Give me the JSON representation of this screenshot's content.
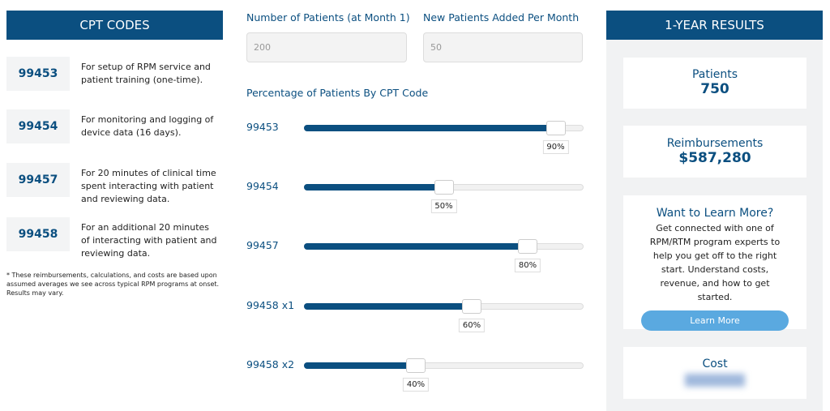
{
  "cpt_panel": {
    "title": "CPT CODES",
    "codes": [
      {
        "code": "99453",
        "description": "For setup of RPM service and patient training (one-time)."
      },
      {
        "code": "99454",
        "description": "For monitoring and logging of device data (16 days)."
      },
      {
        "code": "99457",
        "description": "For 20 minutes of clinical time spent interacting with patient and reviewing data."
      },
      {
        "code": "99458",
        "description": "For an additional 20 minutes of interacting with patient and reviewing data."
      }
    ],
    "footnote": "* These reimbursements, calculations, and costs are based upon assumed averages we see across typical RPM programs at onset. Results may vary."
  },
  "inputs": [
    {
      "label": "Number of Patients (at Month 1)",
      "value": "200"
    },
    {
      "label": "New Patients Added Per Month",
      "value": "50"
    }
  ],
  "sliders": {
    "title": "Percentage of Patients By CPT Code",
    "items": [
      {
        "label": "99453",
        "value": 90,
        "value_label": "90%"
      },
      {
        "label": "99454",
        "value": 50,
        "value_label": "50%"
      },
      {
        "label": "99457",
        "value": 80,
        "value_label": "80%"
      },
      {
        "label": "99458 x1",
        "value": 60,
        "value_label": "60%"
      },
      {
        "label": "99458 x2",
        "value": 40,
        "value_label": "40%"
      }
    ]
  },
  "results": {
    "title": "1-YEAR RESULTS",
    "patients": {
      "label": "Patients",
      "value": "750"
    },
    "reimbursements": {
      "label": "Reimbursements",
      "value": "$587,280"
    },
    "learn_more": {
      "title": "Want to Learn More?",
      "text": "Get connected with one of RPM/RTM program experts to help you get off to the right start. Understand costs, revenue, and how to get started.",
      "button": "Learn More"
    },
    "cost": {
      "label": "Cost"
    }
  }
}
